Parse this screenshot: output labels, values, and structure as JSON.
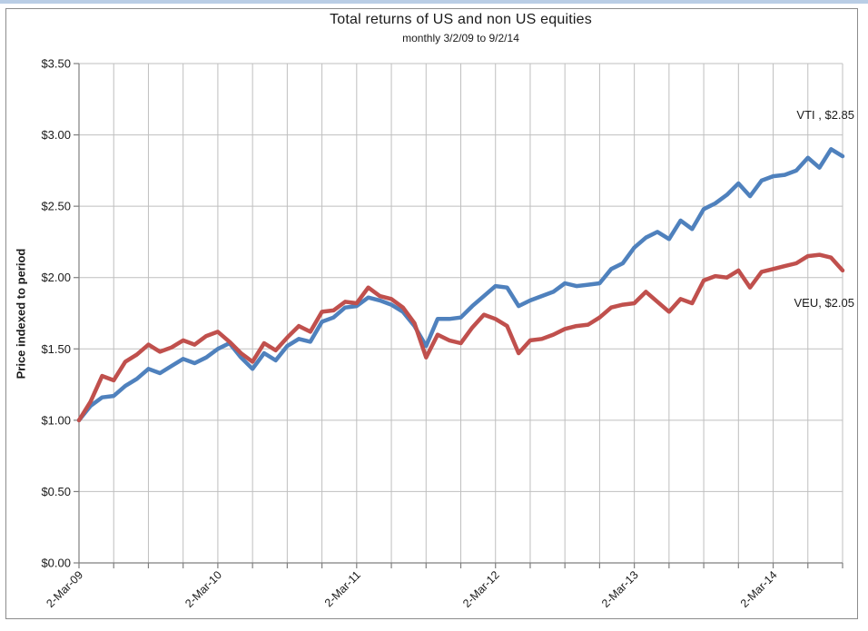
{
  "chart_data": {
    "type": "line",
    "title": "Total returns of US and non US equities",
    "subtitle": "monthly 3/2/09 to 9/2/14",
    "xlabel": "",
    "ylabel": "Price indexed to period",
    "ylim": [
      0,
      3.5
    ],
    "y_tick_interval": 0.5,
    "y_tick_labels": [
      "$0.00",
      "$0.50",
      "$1.00",
      "$1.50",
      "$2.00",
      "$2.50",
      "$3.00",
      "$3.50"
    ],
    "x_tick_labels": [
      "2-Mar-09",
      "2-Mar-10",
      "2-Mar-11",
      "2-Mar-12",
      "2-Mar-13",
      "2-Mar-14"
    ],
    "x_tick_month_index": [
      0,
      12,
      24,
      36,
      48,
      60
    ],
    "frequency": "monthly",
    "n_points": 67,
    "grid": {
      "horizontal": true,
      "vertical_every_months": 3
    },
    "legend_position": "none - labels at line ends",
    "style": {
      "gridline_color": "#bfbfbf",
      "axis_color": "#7f7f7f",
      "plot_background": "#ffffff"
    },
    "x_dates": [
      "2-Mar-09",
      "2-Apr-09",
      "2-May-09",
      "2-Jun-09",
      "2-Jul-09",
      "2-Aug-09",
      "2-Sep-09",
      "2-Oct-09",
      "2-Nov-09",
      "2-Dec-09",
      "2-Jan-10",
      "2-Feb-10",
      "2-Mar-10",
      "2-Apr-10",
      "2-May-10",
      "2-Jun-10",
      "2-Jul-10",
      "2-Aug-10",
      "2-Sep-10",
      "2-Oct-10",
      "2-Nov-10",
      "2-Dec-10",
      "2-Jan-11",
      "2-Feb-11",
      "2-Mar-11",
      "2-Apr-11",
      "2-May-11",
      "2-Jun-11",
      "2-Jul-11",
      "2-Aug-11",
      "2-Sep-11",
      "2-Oct-11",
      "2-Nov-11",
      "2-Dec-11",
      "2-Jan-12",
      "2-Feb-12",
      "2-Mar-12",
      "2-Apr-12",
      "2-May-12",
      "2-Jun-12",
      "2-Jul-12",
      "2-Aug-12",
      "2-Sep-12",
      "2-Oct-12",
      "2-Nov-12",
      "2-Dec-12",
      "2-Jan-13",
      "2-Feb-13",
      "2-Mar-13",
      "2-Apr-13",
      "2-May-13",
      "2-Jun-13",
      "2-Jul-13",
      "2-Aug-13",
      "2-Sep-13",
      "2-Oct-13",
      "2-Nov-13",
      "2-Dec-13",
      "2-Jan-14",
      "2-Feb-14",
      "2-Mar-14",
      "2-Apr-14",
      "2-May-14",
      "2-Jun-14",
      "2-Jul-14",
      "2-Aug-14",
      "2-Sep-14"
    ],
    "series": [
      {
        "name": "VTI",
        "end_label": "VTI , $2.85",
        "end_value": "$2.85",
        "color": "#4f81bd",
        "values": [
          1.0,
          1.1,
          1.16,
          1.17,
          1.24,
          1.29,
          1.36,
          1.33,
          1.38,
          1.43,
          1.4,
          1.44,
          1.5,
          1.54,
          1.44,
          1.36,
          1.47,
          1.42,
          1.52,
          1.57,
          1.55,
          1.69,
          1.72,
          1.79,
          1.8,
          1.86,
          1.84,
          1.81,
          1.76,
          1.66,
          1.52,
          1.71,
          1.71,
          1.72,
          1.8,
          1.87,
          1.94,
          1.93,
          1.8,
          1.84,
          1.87,
          1.9,
          1.96,
          1.94,
          1.95,
          1.96,
          2.06,
          2.1,
          2.21,
          2.28,
          2.32,
          2.27,
          2.4,
          2.34,
          2.48,
          2.52,
          2.58,
          2.66,
          2.57,
          2.68,
          2.71,
          2.72,
          2.75,
          2.84,
          2.77,
          2.9,
          2.85
        ]
      },
      {
        "name": "VEU",
        "end_label": "VEU, $2.05",
        "end_value": "$2.05",
        "color": "#c0504d",
        "values": [
          1.0,
          1.13,
          1.31,
          1.28,
          1.41,
          1.46,
          1.53,
          1.48,
          1.51,
          1.56,
          1.53,
          1.59,
          1.62,
          1.55,
          1.47,
          1.41,
          1.54,
          1.49,
          1.58,
          1.66,
          1.62,
          1.76,
          1.77,
          1.83,
          1.82,
          1.93,
          1.87,
          1.85,
          1.79,
          1.68,
          1.44,
          1.6,
          1.56,
          1.54,
          1.65,
          1.74,
          1.71,
          1.66,
          1.47,
          1.56,
          1.57,
          1.6,
          1.64,
          1.66,
          1.67,
          1.72,
          1.79,
          1.81,
          1.82,
          1.9,
          1.83,
          1.76,
          1.85,
          1.82,
          1.98,
          2.01,
          2.0,
          2.05,
          1.93,
          2.04,
          2.06,
          2.08,
          2.1,
          2.15,
          2.16,
          2.14,
          2.05
        ]
      }
    ]
  }
}
